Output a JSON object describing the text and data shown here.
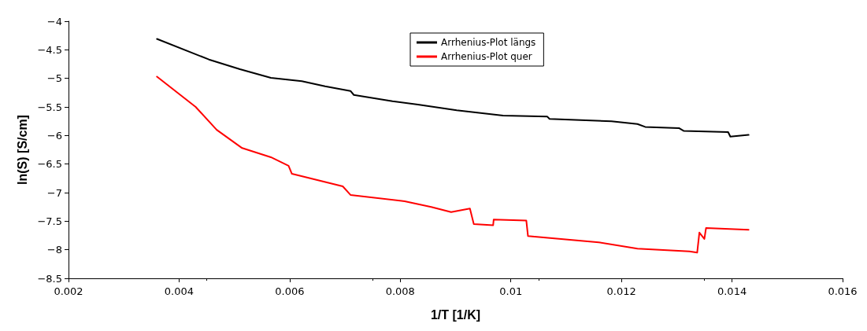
{
  "chart_data": {
    "type": "line",
    "xlabel": "1/T [1/K]",
    "ylabel": "ln(S) [S/cm]",
    "xlim": [
      0.002,
      0.016
    ],
    "xticks": [
      0.002,
      0.004,
      0.006,
      0.008,
      0.01,
      0.012,
      0.014,
      0.016
    ],
    "ylim": [
      -8.5,
      -4
    ],
    "yticks": [
      -8.5,
      -8,
      -7.5,
      -7,
      -6.5,
      -6,
      -5.5,
      -5,
      -4.5,
      -4
    ],
    "grid": false,
    "legend": "top",
    "marker": "none",
    "line_style": "solid",
    "series": [
      {
        "name": "Arrhenius-Plot längs",
        "color": "#000000",
        "x": [
          0.0036,
          0.00454,
          0.0051,
          0.00566,
          0.00622,
          0.00664,
          0.0071,
          0.00716,
          0.00786,
          0.00832,
          0.00902,
          0.00986,
          0.01066,
          0.0107,
          0.01182,
          0.01229,
          0.01243,
          0.01304,
          0.01313,
          0.01393,
          0.01397,
          0.0143
        ],
        "values": [
          -4.31,
          -4.67,
          -4.84,
          -4.99,
          -5.05,
          -5.14,
          -5.22,
          -5.29,
          -5.4,
          -5.46,
          -5.56,
          -5.65,
          -5.67,
          -5.71,
          -5.75,
          -5.8,
          -5.85,
          -5.87,
          -5.92,
          -5.94,
          -6.02,
          -5.99
        ]
      },
      {
        "name": "Arrhenius-Plot quer",
        "color": "#ff0000",
        "x": [
          0.0036,
          0.0043,
          0.00468,
          0.00514,
          0.00566,
          0.00598,
          0.00604,
          0.00696,
          0.0071,
          0.00808,
          0.00856,
          0.00892,
          0.00926,
          0.00933,
          0.00968,
          0.00969,
          0.01028,
          0.01031,
          0.01159,
          0.01229,
          0.01323,
          0.01337,
          0.01341,
          0.0135,
          0.01353,
          0.0143
        ],
        "values": [
          -4.97,
          -5.5,
          -5.9,
          -6.22,
          -6.38,
          -6.53,
          -6.67,
          -6.89,
          -7.04,
          -7.15,
          -7.25,
          -7.34,
          -7.28,
          -7.55,
          -7.57,
          -7.47,
          -7.49,
          -7.76,
          -7.87,
          -7.98,
          -8.03,
          -8.05,
          -7.7,
          -7.81,
          -7.62,
          -7.65
        ]
      }
    ]
  }
}
